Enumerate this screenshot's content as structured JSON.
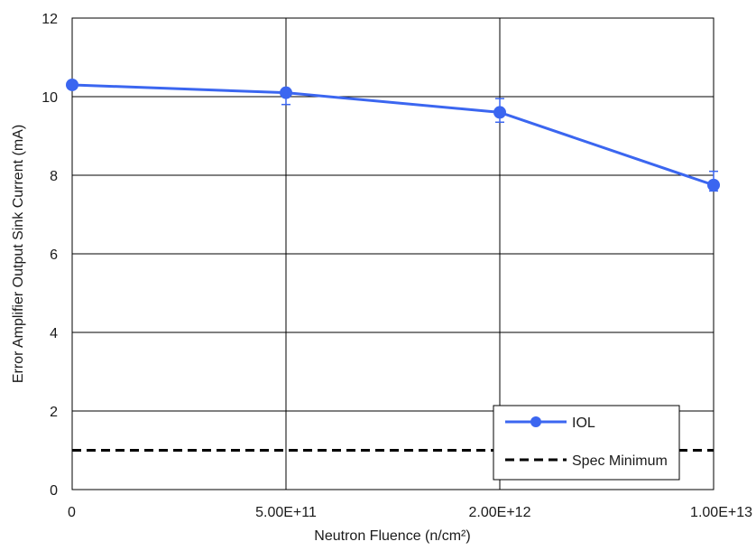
{
  "chart_data": {
    "type": "line",
    "title": "",
    "xlabel": "Neutron Fluence (n/cm²)",
    "ylabel": "Error Amplifier Output Sink Current (mA)",
    "categories": [
      "0",
      "5.00E+11",
      "2.00E+12",
      "1.00E+13"
    ],
    "ylim": [
      0,
      12
    ],
    "yticks": [
      0,
      2,
      4,
      6,
      8,
      10,
      12
    ],
    "grid": true,
    "legend_position": "bottom-right",
    "series": [
      {
        "name": "IOL",
        "style": "solid-line-with-markers",
        "color": "#3b66f0",
        "values": [
          10.3,
          10.1,
          9.6,
          7.75
        ],
        "error_low": [
          10.3,
          9.8,
          9.35,
          7.6
        ],
        "error_high": [
          10.3,
          10.15,
          9.95,
          8.1
        ]
      },
      {
        "name": "Spec Minimum",
        "style": "dashed-line",
        "color": "#000000",
        "values": [
          1,
          1,
          1,
          1
        ]
      }
    ]
  }
}
